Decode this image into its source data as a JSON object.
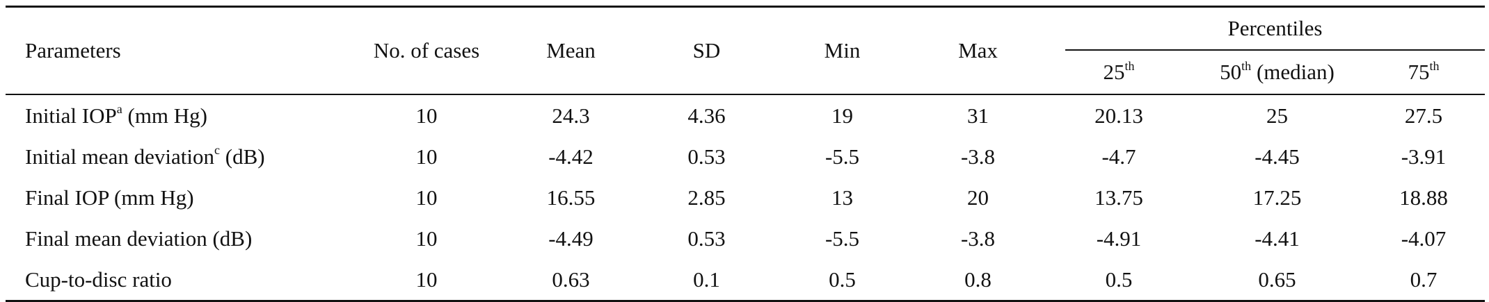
{
  "table": {
    "headers": {
      "parameters": "Parameters",
      "cases": "No. of cases",
      "mean": "Mean",
      "sd": "SD",
      "min": "Min",
      "max": "Max",
      "percentiles": "Percentiles",
      "p25_num": "25",
      "p25_sup": "th",
      "p50_num": "50",
      "p50_sup": "th",
      "p50_suffix": " (median)",
      "p75_num": "75",
      "p75_sup": "th"
    },
    "rows": [
      {
        "label_main": "Initial IOP",
        "label_sup": "a",
        "label_tail": " (mm Hg)",
        "cases": "10",
        "mean": "24.3",
        "sd": "4.36",
        "min": "19",
        "max": "31",
        "p25": "20.13",
        "p50": "25",
        "p75": "27.5"
      },
      {
        "label_main": "Initial mean deviation",
        "label_sup": "c",
        "label_tail": " (dB)",
        "cases": "10",
        "mean": "-4.42",
        "sd": "0.53",
        "min": "-5.5",
        "max": "-3.8",
        "p25": "-4.7",
        "p50": "-4.45",
        "p75": "-3.91"
      },
      {
        "label_main": "Final IOP (mm Hg)",
        "label_sup": "",
        "label_tail": "",
        "cases": "10",
        "mean": "16.55",
        "sd": "2.85",
        "min": "13",
        "max": "20",
        "p25": "13.75",
        "p50": "17.25",
        "p75": "18.88"
      },
      {
        "label_main": "Final mean deviation (dB)",
        "label_sup": "",
        "label_tail": "",
        "cases": "10",
        "mean": "-4.49",
        "sd": "0.53",
        "min": "-5.5",
        "max": "-3.8",
        "p25": "-4.91",
        "p50": "-4.41",
        "p75": "-4.07"
      },
      {
        "label_main": "Cup-to-disc ratio",
        "label_sup": "",
        "label_tail": "",
        "cases": "10",
        "mean": "0.63",
        "sd": "0.1",
        "min": "0.5",
        "max": "0.8",
        "p25": "0.5",
        "p50": "0.65",
        "p75": "0.7"
      }
    ]
  }
}
